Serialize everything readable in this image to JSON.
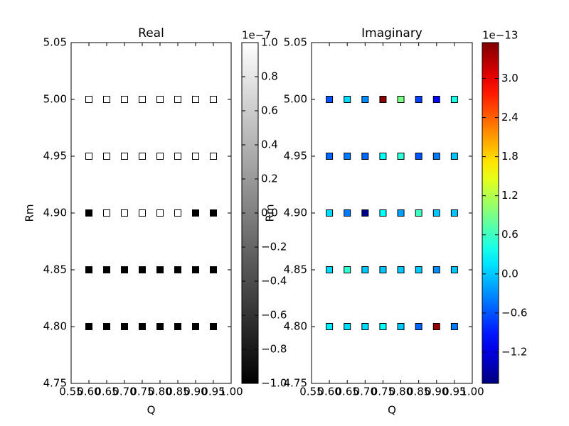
{
  "chart_data": [
    {
      "type": "scatter",
      "title": "Real",
      "xlabel": "Q",
      "ylabel": "Rm",
      "colormap": "gray",
      "xlim": [
        0.55,
        1.0
      ],
      "xticks": [
        0.55,
        {
          "value": 0.6,
          "label": "0.60"
        },
        0.65,
        {
          "value": 0.7,
          "label": "0.70"
        },
        0.75,
        {
          "value": 0.8,
          "label": "0.80"
        },
        0.85,
        {
          "value": 0.9,
          "label": "0.90"
        },
        0.95,
        {
          "value": 1.0,
          "label": "1.00"
        }
      ],
      "ylim": [
        4.75,
        5.05
      ],
      "yticks": [
        4.75,
        {
          "value": 4.8,
          "label": "4.80"
        },
        4.85,
        {
          "value": 4.9,
          "label": "4.90"
        },
        4.95,
        {
          "value": 5.0,
          "label": "5.00"
        },
        5.05
      ],
      "x": [
        0.6,
        0.65,
        0.7,
        0.75,
        0.8,
        0.85,
        0.9,
        0.95,
        0.6,
        0.65,
        0.7,
        0.75,
        0.8,
        0.85,
        0.9,
        0.95,
        0.6,
        0.65,
        0.7,
        0.75,
        0.8,
        0.85,
        0.9,
        0.95,
        0.6,
        0.65,
        0.7,
        0.75,
        0.8,
        0.85,
        0.9,
        0.95,
        0.6,
        0.65,
        0.7,
        0.75,
        0.8,
        0.85,
        0.9,
        0.95
      ],
      "y": [
        5.0,
        5.0,
        5.0,
        5.0,
        5.0,
        5.0,
        5.0,
        5.0,
        4.95,
        4.95,
        4.95,
        4.95,
        4.95,
        4.95,
        4.95,
        4.95,
        4.9,
        4.9,
        4.9,
        4.9,
        4.9,
        4.9,
        4.9,
        4.9,
        4.85,
        4.85,
        4.85,
        4.85,
        4.85,
        4.85,
        4.85,
        4.85,
        4.8,
        4.8,
        4.8,
        4.8,
        4.8,
        4.8,
        4.8,
        4.8
      ],
      "values": [
        1.0,
        1.0,
        1.0,
        1.0,
        1.0,
        1.0,
        1.0,
        1.0,
        1.0,
        1.0,
        1.0,
        1.0,
        1.0,
        1.0,
        1.0,
        1.0,
        -1.0,
        1.0,
        1.0,
        1.0,
        1.0,
        1.0,
        -1.0,
        -1.0,
        -1.0,
        -1.0,
        -1.0,
        -1.0,
        -1.0,
        -1.0,
        -1.0,
        -1.0,
        -1.0,
        -1.0,
        -1.0,
        -1.0,
        -1.0,
        -1.0,
        -1.0,
        -1.0
      ],
      "colorbar": {
        "lim": [
          -1.0,
          1.0
        ],
        "offset": "1e−7",
        "ticks": [
          {
            "value": -1.0,
            "label": "−1.0"
          },
          {
            "value": -0.8,
            "label": "−0.8"
          },
          {
            "value": -0.6,
            "label": "−0.6"
          },
          {
            "value": -0.4,
            "label": "−0.4"
          },
          {
            "value": -0.2,
            "label": "−0.2"
          },
          {
            "value": 0.0,
            "label": "0.0"
          },
          0.2,
          0.4,
          0.6,
          0.8,
          {
            "value": 1.0,
            "label": "1.0"
          }
        ]
      }
    },
    {
      "type": "scatter",
      "title": "Imaginary",
      "xlabel": "Q",
      "ylabel": "Rm",
      "colormap": "jet",
      "xlim": [
        0.55,
        1.0
      ],
      "xticks": [
        0.55,
        {
          "value": 0.6,
          "label": "0.60"
        },
        0.65,
        {
          "value": 0.7,
          "label": "0.70"
        },
        0.75,
        {
          "value": 0.8,
          "label": "0.80"
        },
        0.85,
        {
          "value": 0.9,
          "label": "0.90"
        },
        0.95,
        {
          "value": 1.0,
          "label": "1.00"
        }
      ],
      "ylim": [
        4.75,
        5.05
      ],
      "yticks": [
        4.75,
        {
          "value": 4.8,
          "label": "4.80"
        },
        4.85,
        {
          "value": 4.9,
          "label": "4.90"
        },
        4.95,
        {
          "value": 5.0,
          "label": "5.00"
        },
        5.05
      ],
      "x": [
        0.6,
        0.65,
        0.7,
        0.75,
        0.8,
        0.85,
        0.9,
        0.95,
        0.6,
        0.65,
        0.7,
        0.75,
        0.8,
        0.85,
        0.9,
        0.95,
        0.6,
        0.65,
        0.7,
        0.75,
        0.8,
        0.85,
        0.9,
        0.95,
        0.6,
        0.65,
        0.7,
        0.75,
        0.8,
        0.85,
        0.9,
        0.95,
        0.6,
        0.65,
        0.7,
        0.75,
        0.8,
        0.85,
        0.9,
        0.95
      ],
      "y": [
        5.0,
        5.0,
        5.0,
        5.0,
        5.0,
        5.0,
        5.0,
        5.0,
        4.95,
        4.95,
        4.95,
        4.95,
        4.95,
        4.95,
        4.95,
        4.95,
        4.9,
        4.9,
        4.9,
        4.9,
        4.9,
        4.9,
        4.9,
        4.9,
        4.85,
        4.85,
        4.85,
        4.85,
        4.85,
        4.85,
        4.85,
        4.85,
        4.8,
        4.8,
        4.8,
        4.8,
        4.8,
        4.8,
        4.8,
        4.8
      ],
      "values": [
        -0.6,
        0.1,
        -0.3,
        3.5,
        0.9,
        -0.7,
        -1.0,
        0.4,
        -0.5,
        -0.4,
        -0.5,
        0.3,
        0.5,
        -0.6,
        -0.4,
        0.0,
        0.1,
        -0.4,
        -1.6,
        0.3,
        -0.2,
        0.6,
        0.0,
        0.0,
        0.1,
        0.5,
        0.0,
        0.0,
        0.0,
        0.0,
        -0.3,
        0.0,
        0.2,
        0.1,
        0.1,
        0.3,
        0.0,
        -0.5,
        3.4,
        -0.4
      ],
      "colorbar": {
        "lim": [
          -1.68,
          3.55
        ],
        "offset": "1e−13",
        "ticks": [
          {
            "value": -1.2,
            "label": "−1.2"
          },
          {
            "value": -0.6,
            "label": "−0.6"
          },
          {
            "value": 0.0,
            "label": "0.0"
          },
          0.6,
          1.2,
          1.8,
          2.4,
          {
            "value": 3.0,
            "label": "3.0"
          }
        ]
      }
    }
  ]
}
